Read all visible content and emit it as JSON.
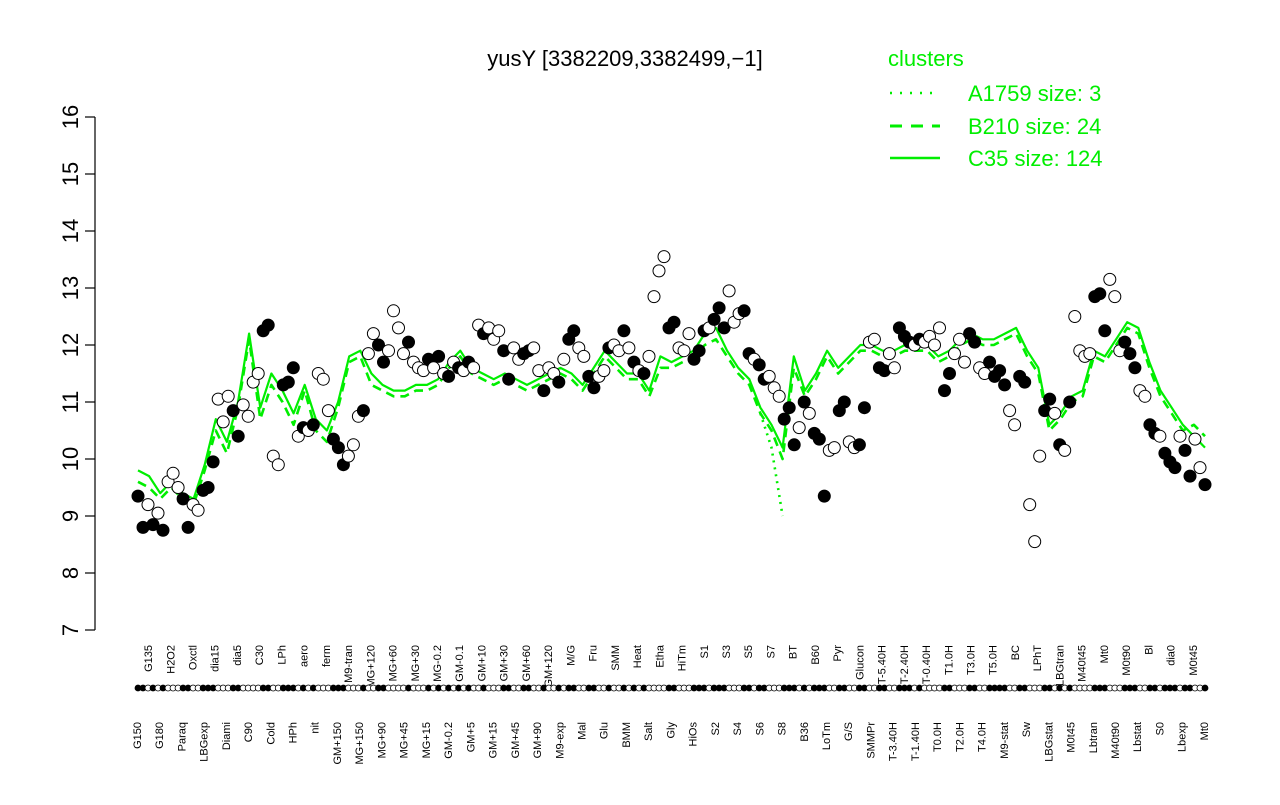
{
  "chart_data": {
    "type": "line",
    "title": "yusY [3382209,3382499,−1]",
    "xlabel": "",
    "ylabel": "",
    "ylim": [
      7,
      16
    ],
    "yticks": [
      7,
      8,
      9,
      10,
      11,
      12,
      13,
      14,
      15,
      16
    ],
    "grid": false,
    "x_tick_labels": [
      "G150",
      "G135",
      "G180",
      "H2O2",
      "Paraq",
      "Oxctl",
      "LBGexp",
      "dia15",
      "Diami",
      "dia5",
      "C90",
      "C30",
      "Cold",
      "LPh",
      "HPh",
      "aero",
      "nit",
      "ferm",
      "GM+150",
      "M9-tran",
      "MG+150",
      "MG+120",
      "MG+90",
      "MG+60",
      "MG+45",
      "MG+30",
      "MG+15",
      "MG-0.2",
      "GM-0.2",
      "GM-0.1",
      "GM+5",
      "GM+10",
      "GM+15",
      "GM+30",
      "GM+45",
      "GM+60",
      "GM+90",
      "GM+120",
      "M9-exp",
      "M/G",
      "Mal",
      "Fru",
      "Glu",
      "SMM",
      "BMM",
      "Heat",
      "Salt",
      "Etha",
      "Gly",
      "HiTm",
      "HiOs",
      "S1",
      "S2",
      "S3",
      "S4",
      "S5",
      "S6",
      "S7",
      "S8",
      "BT",
      "B36",
      "B60",
      "LoTm",
      "Pyr",
      "G/S",
      "Glucon",
      "SMMPr",
      "T-5.40H",
      "T-3.40H",
      "T-2.40H",
      "T-1.40H",
      "T-0.40H",
      "T0.0H",
      "T1.0H",
      "T2.0H",
      "T3.0H",
      "T4.0H",
      "T5.0H",
      "M9-stat",
      "BC",
      "Sw",
      "LPhT",
      "LBGstat",
      "LBGtran",
      "M0t45",
      "M40t45",
      "Lbtran",
      "Mt0",
      "M40t90",
      "M0t90",
      "Lbstat",
      "Bl",
      "S0",
      "dia0",
      "Lbexp",
      "M0t45",
      "Mt0"
    ],
    "legend": {
      "title": "clusters",
      "position": "top-right",
      "entries": [
        {
          "label": "A1759 size: 3",
          "style": "dotted"
        },
        {
          "label": "B210 size: 24",
          "style": "dashed"
        },
        {
          "label": "C35 size: 124",
          "style": "solid"
        }
      ]
    },
    "colors": {
      "cluster_lines": "#00ee00",
      "points_fill_dark": "#000000",
      "points_fill_light": "#ffffff"
    },
    "series": [
      {
        "name": "C35 size: 124",
        "style": "solid",
        "values": [
          9.8,
          9.7,
          9.4,
          9.6,
          9.4,
          9.3,
          9.9,
          10.7,
          10.3,
          11.0,
          12.2,
          10.9,
          11.5,
          11.2,
          10.8,
          11.3,
          10.7,
          10.5,
          11.0,
          11.8,
          11.9,
          11.5,
          11.3,
          11.2,
          11.2,
          11.3,
          11.3,
          11.4,
          11.7,
          11.9,
          11.6,
          11.5,
          11.4,
          11.5,
          11.4,
          11.3,
          11.4,
          11.5,
          11.6,
          11.5,
          11.3,
          11.6,
          11.9,
          11.7,
          11.5,
          11.5,
          11.2,
          11.8,
          11.7,
          11.8,
          11.9,
          12.2,
          12.3,
          11.9,
          11.6,
          11.4,
          10.9,
          10.6,
          10.2,
          11.8,
          11.2,
          11.5,
          11.9,
          11.6,
          11.8,
          12.0,
          12.0,
          11.9,
          11.9,
          12.0,
          12.0,
          12.0,
          11.8,
          11.9,
          12.1,
          12.2,
          12.1,
          12.1,
          12.2,
          12.3,
          11.9,
          11.6,
          10.6,
          10.8,
          11.1,
          11.2,
          11.9,
          11.8,
          12.1,
          12.4,
          12.3,
          11.7,
          11.2,
          10.9,
          10.6,
          10.4,
          10.2
        ]
      },
      {
        "name": "B210 size: 24",
        "style": "dashed",
        "values": [
          9.6,
          9.5,
          9.3,
          9.5,
          9.3,
          9.2,
          9.8,
          10.5,
          10.1,
          10.9,
          12.1,
          10.7,
          11.3,
          11.0,
          10.6,
          11.2,
          10.5,
          10.3,
          10.9,
          11.7,
          11.8,
          11.3,
          11.2,
          11.1,
          11.1,
          11.2,
          11.2,
          11.3,
          11.6,
          11.8,
          11.5,
          11.4,
          11.3,
          11.4,
          11.3,
          11.2,
          11.3,
          11.4,
          11.5,
          11.4,
          11.2,
          11.5,
          11.8,
          11.6,
          11.4,
          11.4,
          11.1,
          11.6,
          11.6,
          11.7,
          11.8,
          12.0,
          12.1,
          11.8,
          11.5,
          11.3,
          10.8,
          10.5,
          10.0,
          11.6,
          11.1,
          11.4,
          11.8,
          11.5,
          11.7,
          11.9,
          11.9,
          11.8,
          11.8,
          11.9,
          11.9,
          11.9,
          11.7,
          11.8,
          12.0,
          12.1,
          12.0,
          12.0,
          12.1,
          12.2,
          11.8,
          11.5,
          10.5,
          10.7,
          11.0,
          11.1,
          11.8,
          11.7,
          12.0,
          12.3,
          12.2,
          11.6,
          11.1,
          10.8,
          10.5,
          10.6,
          10.4
        ]
      },
      {
        "name": "A1759 size: 3",
        "style": "dotted",
        "values": [
          null,
          null,
          null,
          null,
          null,
          null,
          null,
          null,
          null,
          null,
          null,
          null,
          null,
          null,
          null,
          null,
          null,
          null,
          null,
          null,
          null,
          null,
          null,
          null,
          null,
          null,
          null,
          null,
          null,
          null,
          null,
          null,
          null,
          null,
          null,
          null,
          null,
          null,
          null,
          null,
          null,
          null,
          null,
          null,
          null,
          null,
          null,
          null,
          null,
          null,
          null,
          null,
          null,
          null,
          null,
          null,
          10.8,
          10.2,
          9.0,
          null,
          null,
          null,
          null,
          null,
          null,
          null,
          null,
          null,
          null,
          null,
          null,
          null,
          null,
          null,
          null,
          null,
          null,
          null,
          null,
          null,
          null,
          null,
          null,
          null,
          null,
          null,
          null,
          null,
          null,
          null,
          null,
          null,
          null,
          null,
          null,
          null,
          null
        ]
      }
    ],
    "points": [
      [
        9.35,
        1
      ],
      [
        8.8,
        1
      ],
      [
        9.2,
        0
      ],
      [
        8.85,
        1
      ],
      [
        9.05,
        0
      ],
      [
        8.75,
        1
      ],
      [
        9.6,
        0
      ],
      [
        9.75,
        0
      ],
      [
        9.5,
        0
      ],
      [
        9.3,
        1
      ],
      [
        8.8,
        1
      ],
      [
        9.2,
        0
      ],
      [
        9.1,
        0
      ],
      [
        9.45,
        1
      ],
      [
        9.5,
        1
      ],
      [
        9.95,
        1
      ],
      [
        11.05,
        0
      ],
      [
        10.65,
        0
      ],
      [
        11.1,
        0
      ],
      [
        10.85,
        1
      ],
      [
        10.4,
        1
      ],
      [
        10.95,
        0
      ],
      [
        10.75,
        0
      ],
      [
        11.35,
        0
      ],
      [
        11.5,
        0
      ],
      [
        12.25,
        1
      ],
      [
        12.35,
        1
      ],
      [
        10.05,
        0
      ],
      [
        9.9,
        0
      ],
      [
        11.3,
        1
      ],
      [
        11.35,
        1
      ],
      [
        11.6,
        1
      ],
      [
        10.4,
        0
      ],
      [
        10.55,
        1
      ],
      [
        10.5,
        0
      ],
      [
        10.6,
        1
      ],
      [
        11.5,
        0
      ],
      [
        11.4,
        0
      ],
      [
        10.85,
        0
      ],
      [
        10.35,
        1
      ],
      [
        10.2,
        1
      ],
      [
        9.9,
        1
      ],
      [
        10.05,
        0
      ],
      [
        10.25,
        0
      ],
      [
        10.75,
        0
      ],
      [
        10.85,
        1
      ],
      [
        11.85,
        0
      ],
      [
        12.2,
        0
      ],
      [
        12.0,
        1
      ],
      [
        11.7,
        1
      ],
      [
        11.9,
        0
      ],
      [
        12.6,
        0
      ],
      [
        12.3,
        0
      ],
      [
        11.85,
        0
      ],
      [
        12.05,
        1
      ],
      [
        11.7,
        0
      ],
      [
        11.6,
        0
      ],
      [
        11.55,
        0
      ],
      [
        11.75,
        1
      ],
      [
        11.6,
        0
      ],
      [
        11.8,
        1
      ],
      [
        11.5,
        0
      ],
      [
        11.45,
        1
      ],
      [
        11.7,
        0
      ],
      [
        11.6,
        1
      ],
      [
        11.55,
        0
      ],
      [
        11.7,
        1
      ],
      [
        11.6,
        0
      ],
      [
        12.35,
        0
      ],
      [
        12.2,
        1
      ],
      [
        12.3,
        0
      ],
      [
        12.1,
        0
      ],
      [
        12.25,
        0
      ],
      [
        11.9,
        1
      ],
      [
        11.4,
        1
      ],
      [
        11.95,
        0
      ],
      [
        11.75,
        0
      ],
      [
        11.85,
        1
      ],
      [
        11.9,
        1
      ],
      [
        11.95,
        0
      ],
      [
        11.55,
        0
      ],
      [
        11.2,
        1
      ],
      [
        11.6,
        0
      ],
      [
        11.5,
        0
      ],
      [
        11.35,
        1
      ],
      [
        11.75,
        0
      ],
      [
        12.1,
        1
      ],
      [
        12.25,
        1
      ],
      [
        11.95,
        0
      ],
      [
        11.8,
        0
      ],
      [
        11.45,
        1
      ],
      [
        11.25,
        1
      ],
      [
        11.45,
        0
      ],
      [
        11.55,
        0
      ],
      [
        11.95,
        1
      ],
      [
        12.0,
        0
      ],
      [
        11.9,
        0
      ],
      [
        12.25,
        1
      ],
      [
        11.95,
        0
      ],
      [
        11.7,
        1
      ],
      [
        11.55,
        0
      ],
      [
        11.5,
        1
      ],
      [
        11.8,
        0
      ],
      [
        12.85,
        0
      ],
      [
        13.3,
        0
      ],
      [
        13.55,
        0
      ],
      [
        12.3,
        1
      ],
      [
        12.4,
        1
      ],
      [
        11.95,
        0
      ],
      [
        11.9,
        0
      ],
      [
        12.2,
        0
      ],
      [
        11.75,
        1
      ],
      [
        11.9,
        1
      ],
      [
        12.25,
        1
      ],
      [
        12.3,
        0
      ],
      [
        12.45,
        1
      ],
      [
        12.65,
        1
      ],
      [
        12.3,
        1
      ],
      [
        12.95,
        0
      ],
      [
        12.4,
        0
      ],
      [
        12.55,
        0
      ],
      [
        12.6,
        1
      ],
      [
        11.85,
        1
      ],
      [
        11.75,
        0
      ],
      [
        11.65,
        1
      ],
      [
        11.4,
        1
      ],
      [
        11.45,
        0
      ],
      [
        11.25,
        0
      ],
      [
        11.1,
        0
      ],
      [
        10.7,
        1
      ],
      [
        10.9,
        1
      ],
      [
        10.25,
        1
      ],
      [
        10.55,
        0
      ],
      [
        11.0,
        1
      ],
      [
        10.8,
        0
      ],
      [
        10.45,
        1
      ],
      [
        10.35,
        1
      ],
      [
        9.35,
        1
      ],
      [
        10.15,
        0
      ],
      [
        10.2,
        0
      ],
      [
        10.85,
        1
      ],
      [
        11.0,
        1
      ],
      [
        10.3,
        0
      ],
      [
        10.2,
        0
      ],
      [
        10.25,
        1
      ],
      [
        10.9,
        1
      ],
      [
        12.05,
        0
      ],
      [
        12.1,
        0
      ],
      [
        11.6,
        1
      ],
      [
        11.55,
        1
      ],
      [
        11.85,
        0
      ],
      [
        11.6,
        0
      ],
      [
        12.3,
        1
      ],
      [
        12.15,
        1
      ],
      [
        12.05,
        1
      ],
      [
        12.0,
        0
      ],
      [
        12.1,
        1
      ],
      [
        12.05,
        0
      ],
      [
        12.15,
        0
      ],
      [
        12.0,
        0
      ],
      [
        12.3,
        0
      ],
      [
        11.2,
        1
      ],
      [
        11.5,
        1
      ],
      [
        11.85,
        0
      ],
      [
        12.1,
        0
      ],
      [
        11.7,
        0
      ],
      [
        12.2,
        1
      ],
      [
        12.05,
        1
      ],
      [
        11.6,
        0
      ],
      [
        11.5,
        0
      ],
      [
        11.7,
        1
      ],
      [
        11.45,
        1
      ],
      [
        11.55,
        1
      ],
      [
        11.3,
        1
      ],
      [
        10.85,
        0
      ],
      [
        10.6,
        0
      ],
      [
        11.45,
        1
      ],
      [
        11.35,
        1
      ],
      [
        9.2,
        0
      ],
      [
        8.55,
        0
      ],
      [
        10.05,
        0
      ],
      [
        10.85,
        1
      ],
      [
        11.05,
        1
      ],
      [
        10.8,
        0
      ],
      [
        10.25,
        1
      ],
      [
        10.15,
        0
      ],
      [
        11.0,
        1
      ],
      [
        12.5,
        0
      ],
      [
        11.9,
        0
      ],
      [
        11.8,
        0
      ],
      [
        11.85,
        0
      ],
      [
        12.85,
        1
      ],
      [
        12.9,
        1
      ],
      [
        12.25,
        1
      ],
      [
        13.15,
        0
      ],
      [
        12.85,
        0
      ],
      [
        11.9,
        0
      ],
      [
        12.05,
        1
      ],
      [
        11.85,
        1
      ],
      [
        11.6,
        1
      ],
      [
        11.2,
        0
      ],
      [
        11.1,
        0
      ],
      [
        10.6,
        1
      ],
      [
        10.45,
        1
      ],
      [
        10.4,
        0
      ],
      [
        10.1,
        1
      ],
      [
        9.95,
        1
      ],
      [
        9.85,
        1
      ],
      [
        10.4,
        0
      ],
      [
        10.15,
        1
      ],
      [
        9.7,
        1
      ],
      [
        10.35,
        0
      ],
      [
        9.85,
        0
      ],
      [
        9.55,
        1
      ]
    ]
  }
}
